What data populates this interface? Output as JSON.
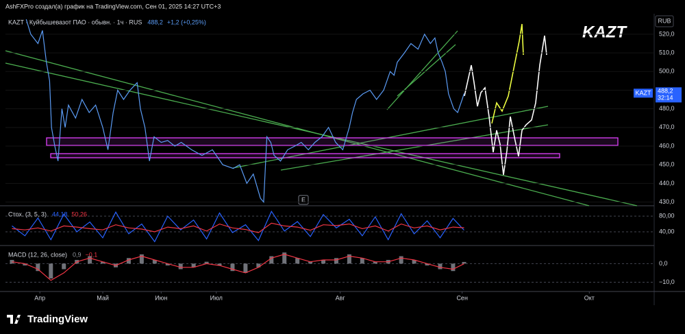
{
  "header": {
    "credit": "AshFXPro создал(а) график на TradingView.com, Сен 01, 2025 14:27 UTC+3",
    "annotation": "KAZT",
    "currency": "RUB",
    "event_marker": "E"
  },
  "footer": {
    "logo": "TradingView"
  },
  "chart_data": [
    {
      "type": "line",
      "title": "KAZT · Куйбышевазот ПАО · обывн. · 1ч · RUS",
      "quote": "488,2",
      "change": "+1,2 (+0,25%)",
      "symbol": "KAZT",
      "last_label": "488,2",
      "countdown": "32:14",
      "x": [
        3.2,
        3.9,
        5.0,
        5.7,
        6.3,
        6.8,
        7.1,
        7.6,
        8.1,
        8.7,
        9.2,
        9.7,
        10.8,
        11.8,
        12.9,
        13.9,
        15.0,
        15.8,
        16.6,
        17.3,
        18.2,
        19.2,
        20.3,
        20.8,
        21.5,
        22.2,
        22.9,
        24.0,
        25.0,
        26.1,
        27.1,
        28.7,
        30.3,
        31.9,
        33.5,
        35.1,
        36.1,
        37.2,
        38.2,
        39.3,
        39.8,
        40.3,
        40.9,
        41.4,
        42.4,
        43.5,
        44.6,
        45.6,
        46.7,
        47.7,
        48.8,
        49.8,
        50.9,
        52.0,
        53.0,
        53.5,
        54.1,
        55.1,
        56.2,
        57.2,
        58.3,
        59.3,
        59.9,
        60.4,
        61.5,
        62.5,
        63.6,
        64.6,
        65.5,
        66.2,
        66.7,
        67.3,
        67.8,
        68.3,
        69.1,
        69.7,
        70.4,
        70.7
      ],
      "series": [
        {
          "color": "#5b9cf6",
          "style": "line",
          "values": [
            528,
            520,
            515,
            522,
            505,
            495,
            470,
            460,
            452,
            480,
            470,
            482,
            475,
            485,
            478,
            482,
            470,
            458,
            478,
            490,
            485,
            490,
            494,
            480,
            470,
            452,
            465,
            462,
            463,
            460,
            462,
            458,
            455,
            458,
            450,
            448,
            450,
            440,
            445,
            432,
            430,
            465,
            462,
            455,
            452,
            458,
            460,
            462,
            458,
            462,
            465,
            470,
            462,
            458,
            470,
            478,
            485,
            488,
            490,
            485,
            490,
            500,
            498,
            505,
            510,
            515,
            512,
            520,
            515,
            518,
            510,
            505,
            500,
            488,
            480,
            478,
            485,
            488.2
          ]
        }
      ],
      "xlim": [
        0,
        100
      ],
      "xticks": [
        {
          "value": 5.3,
          "label": "Апр"
        },
        {
          "value": 15,
          "label": "Май"
        },
        {
          "value": 24,
          "label": "Июн"
        },
        {
          "value": 32.5,
          "label": "Июл"
        },
        {
          "value": 51.6,
          "label": "Авг"
        },
        {
          "value": 70.4,
          "label": "Сен"
        },
        {
          "value": 90,
          "label": "Окт"
        }
      ],
      "ylim": [
        428,
        531
      ],
      "yticks": [
        {
          "value": 430,
          "label": "430,0"
        },
        {
          "value": 440,
          "label": "440,0"
        },
        {
          "value": 450,
          "label": "450,0"
        },
        {
          "value": 460,
          "label": "460,0"
        },
        {
          "value": 470,
          "label": "470,0"
        },
        {
          "value": 480,
          "label": "480,0"
        },
        {
          "value": 490,
          "label": "490,0"
        },
        {
          "value": 500,
          "label": "500,0"
        },
        {
          "value": 510,
          "label": "510,0"
        },
        {
          "value": 520,
          "label": "520,0"
        }
      ],
      "grid": true
    },
    {
      "type": "line",
      "title": "Стох. (3, 5, 3)",
      "x": [
        1,
        3,
        5,
        7,
        9,
        11,
        13,
        15,
        17,
        19,
        21,
        23,
        25,
        27,
        29,
        31,
        33,
        35,
        37,
        39,
        41,
        43,
        45,
        47,
        49,
        51,
        53,
        55,
        57,
        59,
        61,
        63,
        65,
        67,
        69,
        70.7
      ],
      "series": [
        {
          "color": "#2962ff",
          "style": "line",
          "last_label": "44,18",
          "values": [
            55,
            30,
            75,
            20,
            85,
            40,
            65,
            25,
            90,
            35,
            60,
            15,
            80,
            45,
            70,
            22,
            88,
            38,
            58,
            18,
            92,
            42,
            66,
            28,
            84,
            50,
            72,
            30,
            78,
            20,
            86,
            35,
            68,
            25,
            74,
            44.18
          ]
        },
        {
          "color": "#f23645",
          "style": "line",
          "last_label": "50,26",
          "values": [
            48,
            45,
            50,
            42,
            55,
            52,
            48,
            45,
            58,
            50,
            47,
            40,
            52,
            48,
            55,
            42,
            60,
            50,
            46,
            38,
            62,
            55,
            52,
            44,
            58,
            56,
            60,
            48,
            55,
            42,
            60,
            50,
            55,
            45,
            52,
            50.26
          ]
        }
      ],
      "xlim": [
        0,
        100
      ],
      "ylim": [
        7,
        101
      ],
      "yticks": [
        {
          "value": 40,
          "label": "40,00"
        },
        {
          "value": 80,
          "label": "80,00"
        }
      ],
      "grid": true
    },
    {
      "type": "line",
      "title": "MACD (12, 26, close)",
      "x": [
        1,
        3,
        5,
        7,
        9,
        11,
        13,
        15,
        17,
        19,
        21,
        23,
        25,
        27,
        29,
        31,
        33,
        35,
        37,
        39,
        41,
        43,
        45,
        47,
        49,
        51,
        53,
        55,
        57,
        59,
        61,
        63,
        65,
        67,
        69,
        70.7
      ],
      "series": [
        {
          "color": "#9598a1",
          "style": "histogram",
          "last_label": "0,9",
          "values": [
            2,
            -1,
            -4,
            -8,
            -3,
            2,
            4,
            1,
            -2,
            3,
            5,
            2,
            -1,
            -3,
            -2,
            1,
            -1,
            -4,
            -5,
            -2,
            4,
            6,
            3,
            1,
            2,
            3,
            5,
            3,
            1,
            2,
            4,
            2,
            -1,
            -3,
            -4,
            0.9
          ]
        },
        {
          "color": "#f23645",
          "style": "line",
          "last_label": "−0,1",
          "values": [
            1,
            0,
            -3,
            -9,
            -5,
            1,
            3,
            1,
            -1,
            2,
            4,
            2,
            0,
            -2,
            -2,
            0,
            -1,
            -3,
            -5,
            -2,
            3,
            5,
            3,
            1,
            2,
            2,
            4,
            3,
            1,
            1,
            3,
            2,
            0,
            -2,
            -3,
            -0.1
          ]
        }
      ],
      "xlim": [
        0,
        100
      ],
      "ylim": [
        -15,
        9
      ],
      "yticks": [
        {
          "value": -10,
          "label": "−10,0"
        },
        {
          "value": 0,
          "label": "0,0"
        }
      ],
      "grid": true
    }
  ]
}
